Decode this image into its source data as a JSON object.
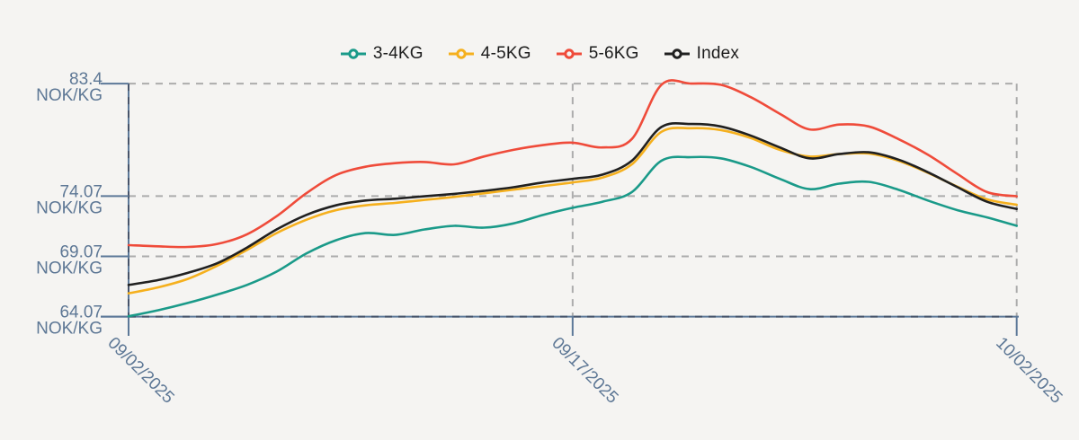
{
  "app": {
    "background": "#f5f4f2",
    "axis_color": "#5c7898",
    "axis_dash_color": "#46536a",
    "grid_color": "#acacac",
    "label_color": "#5d7795"
  },
  "legend": {
    "items": [
      {
        "label": "3-4KG",
        "color": "#1a9a89"
      },
      {
        "label": "4-5KG",
        "color": "#f5b01e"
      },
      {
        "label": "5-6KG",
        "color": "#ef4b3a"
      },
      {
        "label": "Index",
        "color": "#202020"
      }
    ]
  },
  "chart_data": {
    "type": "line",
    "title": "",
    "unit": "NOK/KG",
    "x_tick_labels": [
      "09/02/2025",
      "09/17/2025",
      "10/02/2025"
    ],
    "x_tick_days": [
      0,
      15,
      30
    ],
    "x_range_days": 30,
    "y_ticks": [
      83.4,
      74.07,
      69.07,
      64.07
    ],
    "y_tick_display": [
      "83.4",
      "74.07",
      "69.07",
      "64.07"
    ],
    "y_tick_unit": "NOK/KG",
    "ylim": [
      64.07,
      83.4
    ],
    "grid": "dashed",
    "legend_position": "top",
    "series": [
      {
        "name": "3-4KG",
        "color": "#1a9a89",
        "values": [
          64.1,
          64.6,
          65.2,
          65.9,
          66.7,
          67.8,
          69.3,
          70.4,
          71.0,
          70.85,
          71.3,
          71.6,
          71.45,
          71.8,
          72.5,
          73.1,
          73.6,
          74.4,
          77.0,
          77.3,
          77.2,
          76.5,
          75.5,
          74.65,
          75.1,
          75.25,
          74.6,
          73.7,
          72.9,
          72.3,
          71.6
        ]
      },
      {
        "name": "4-5KG",
        "color": "#f5b01e",
        "values": [
          66.0,
          66.5,
          67.2,
          68.3,
          69.6,
          71.0,
          72.1,
          72.9,
          73.3,
          73.5,
          73.75,
          74.0,
          74.3,
          74.6,
          74.9,
          75.2,
          75.6,
          76.7,
          79.4,
          79.7,
          79.55,
          78.9,
          77.9,
          77.35,
          77.55,
          77.6,
          77.0,
          76.0,
          74.85,
          73.8,
          73.35
        ]
      },
      {
        "name": "5-6KG",
        "color": "#ef4b3a",
        "values": [
          70.0,
          69.9,
          69.85,
          70.1,
          70.9,
          72.4,
          74.3,
          75.8,
          76.5,
          76.8,
          76.9,
          76.7,
          77.35,
          77.9,
          78.3,
          78.5,
          78.1,
          78.8,
          83.3,
          83.4,
          83.3,
          82.3,
          80.9,
          79.6,
          80.0,
          79.85,
          78.8,
          77.5,
          75.9,
          74.4,
          74.05
        ]
      },
      {
        "name": "Index",
        "color": "#202020",
        "values": [
          66.7,
          67.1,
          67.7,
          68.5,
          69.8,
          71.3,
          72.5,
          73.3,
          73.7,
          73.85,
          74.05,
          74.25,
          74.5,
          74.8,
          75.2,
          75.5,
          75.85,
          77.0,
          79.8,
          80.05,
          79.85,
          79.1,
          78.1,
          77.2,
          77.55,
          77.7,
          77.1,
          76.05,
          74.8,
          73.6,
          73.0
        ]
      }
    ]
  }
}
